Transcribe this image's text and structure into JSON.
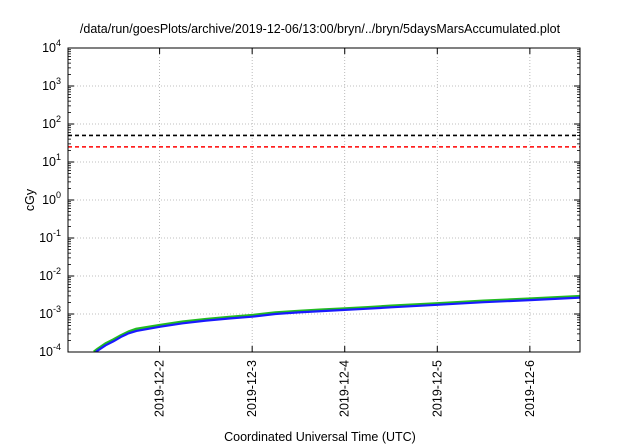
{
  "chart_data": {
    "type": "line",
    "title": "/data/run/goesPlots/archive/2019-12-06/13:00/bryn/../bryn/5daysMarsAccumulated.plot",
    "xlabel": "Coordinated Universal Time (UTC)",
    "ylabel": "cGy",
    "xlim": [
      "2019-12-01T00:15",
      "2019-12-06T13:00"
    ],
    "yscale": "log",
    "ylim": [
      0.0001,
      10000
    ],
    "yticks": [
      {
        "value": 0.0001,
        "base": "10",
        "exp": "-4"
      },
      {
        "value": 0.001,
        "base": "10",
        "exp": "-3"
      },
      {
        "value": 0.01,
        "base": "10",
        "exp": "-2"
      },
      {
        "value": 0.1,
        "base": "10",
        "exp": "-1"
      },
      {
        "value": 1,
        "base": "10",
        "exp": "0"
      },
      {
        "value": 10,
        "base": "10",
        "exp": "1"
      },
      {
        "value": 100,
        "base": "10",
        "exp": "2"
      },
      {
        "value": 1000,
        "base": "10",
        "exp": "3"
      },
      {
        "value": 10000,
        "base": "10",
        "exp": "4"
      }
    ],
    "xticks": [
      "2019-12-2",
      "2019-12-3",
      "2019-12-4",
      "2019-12-5",
      "2019-12-6"
    ],
    "grid": true,
    "legend": "none",
    "reference_lines": [
      {
        "y": 50,
        "color": "#000000",
        "style": "dashed"
      },
      {
        "y": 25,
        "color": "#ff0000",
        "style": "dashed"
      }
    ],
    "series": [
      {
        "color": "#22bb22",
        "x": [
          "2019-12-01T07:00",
          "2019-12-01T08:00",
          "2019-12-01T10:00",
          "2019-12-01T12:00",
          "2019-12-01T14:00",
          "2019-12-01T16:00",
          "2019-12-01T18:00",
          "2019-12-02T00:00",
          "2019-12-02T06:00",
          "2019-12-02T12:00",
          "2019-12-02T18:00",
          "2019-12-03T00:00",
          "2019-12-03T06:00",
          "2019-12-03T12:00",
          "2019-12-03T18:00",
          "2019-12-04T00:00",
          "2019-12-04T06:00",
          "2019-12-04T12:00",
          "2019-12-05T00:00",
          "2019-12-05T12:00",
          "2019-12-06T00:00",
          "2019-12-06T13:00"
        ],
        "y": [
          0.0001,
          0.00012,
          0.000165,
          0.00021,
          0.00027,
          0.00034,
          0.0004,
          0.0005,
          0.00062,
          0.00072,
          0.00082,
          0.00092,
          0.00108,
          0.00118,
          0.00128,
          0.00138,
          0.00148,
          0.00162,
          0.00188,
          0.0022,
          0.0025,
          0.0029
        ]
      },
      {
        "color": "#1a1aff",
        "x": [
          "2019-12-01T07:00",
          "2019-12-01T08:00",
          "2019-12-01T10:00",
          "2019-12-01T12:00",
          "2019-12-01T14:00",
          "2019-12-01T16:00",
          "2019-12-01T18:00",
          "2019-12-02T00:00",
          "2019-12-02T06:00",
          "2019-12-02T12:00",
          "2019-12-02T18:00",
          "2019-12-03T00:00",
          "2019-12-03T06:00",
          "2019-12-03T12:00",
          "2019-12-03T18:00",
          "2019-12-04T00:00",
          "2019-12-04T06:00",
          "2019-12-04T12:00",
          "2019-12-05T00:00",
          "2019-12-05T12:00",
          "2019-12-06T00:00",
          "2019-12-06T13:00"
        ],
        "y": [
          9e-05,
          0.00011,
          0.00015,
          0.00019,
          0.00025,
          0.00031,
          0.00036,
          0.00046,
          0.00057,
          0.00067,
          0.00076,
          0.00085,
          0.001,
          0.0011,
          0.00119,
          0.00128,
          0.00138,
          0.0015,
          0.00175,
          0.00205,
          0.00232,
          0.0027
        ]
      }
    ]
  }
}
